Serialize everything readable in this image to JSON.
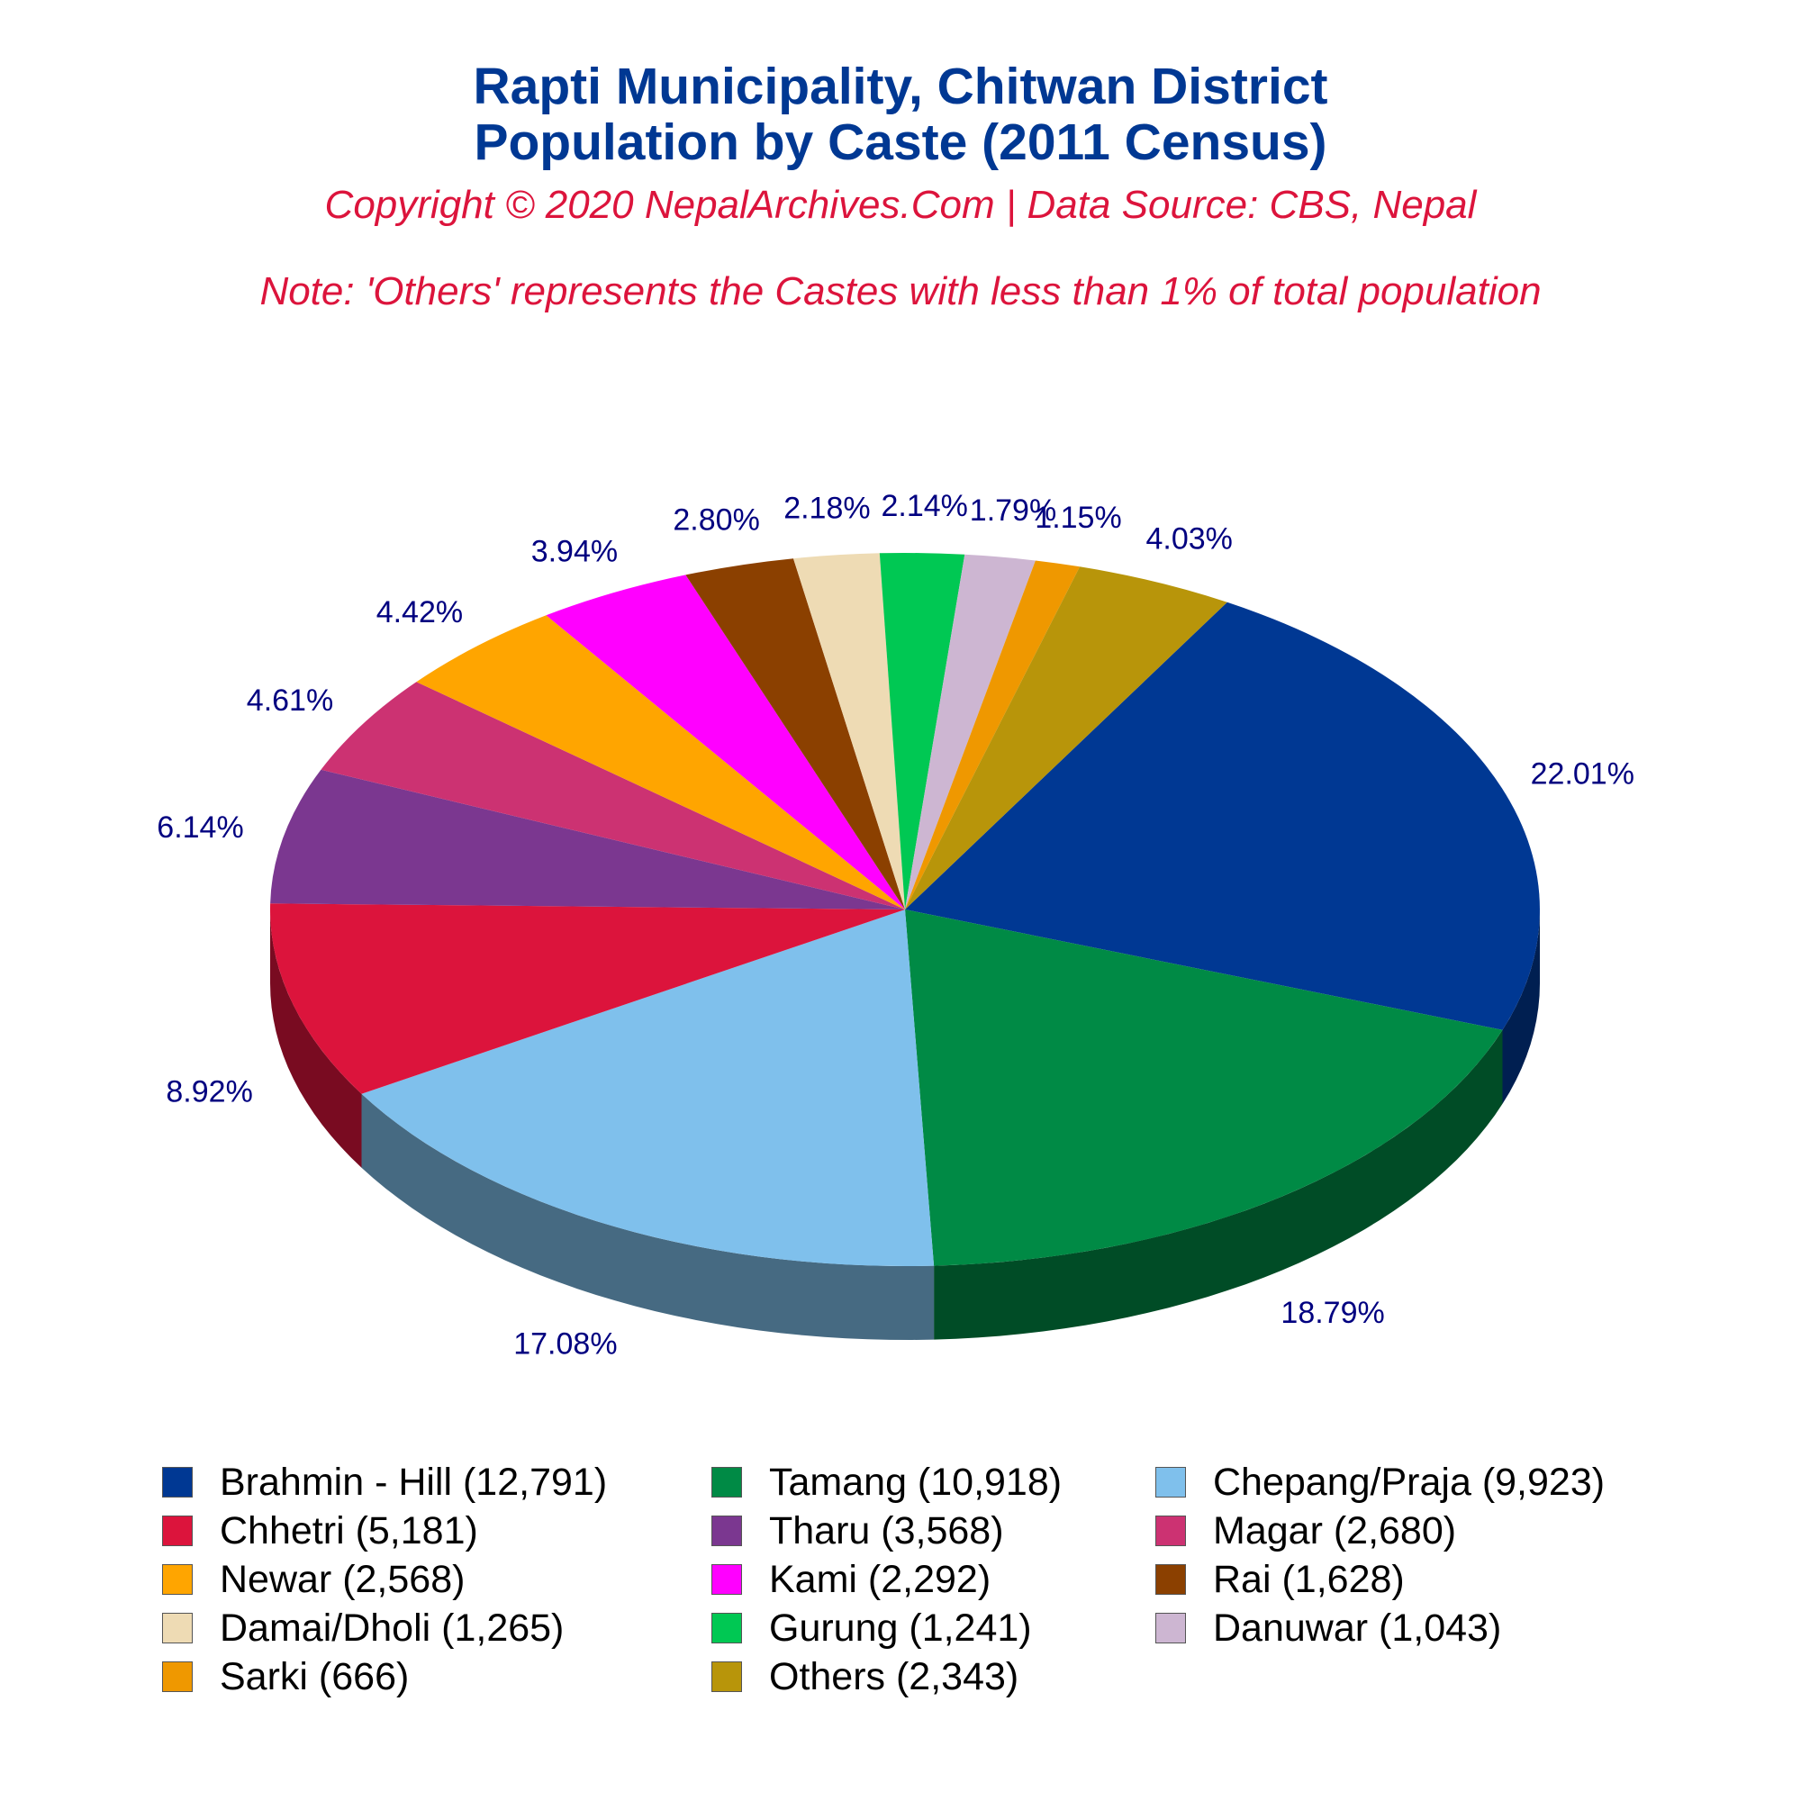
{
  "title_line1": "Rapti Municipality, Chitwan District",
  "title_line2": "Population by Caste (2011 Census)",
  "copyright": "Copyright © 2020 NepalArchives.Com | Data Source: CBS, Nepal",
  "note": "Note: 'Others' represents the Castes with less than 1% of total population",
  "chart_data": {
    "type": "pie",
    "style": "3d",
    "title": "Rapti Municipality, Chitwan District Population by Caste (2011 Census)",
    "legend_placement": "bottom",
    "slices": [
      {
        "name": "Brahmin - Hill",
        "value": 12791,
        "percent_label": "22.01%",
        "legend": "Brahmin - Hill (12,791)",
        "color": "#003893"
      },
      {
        "name": "Tamang",
        "value": 10918,
        "percent_label": "18.79%",
        "legend": "Tamang (10,918)",
        "color": "#008a45"
      },
      {
        "name": "Chepang/Praja",
        "value": 9923,
        "percent_label": "17.08%",
        "legend": "Chepang/Praja (9,923)",
        "color": "#7fc0ec"
      },
      {
        "name": "Chhetri",
        "value": 5181,
        "percent_label": "8.92%",
        "legend": "Chhetri (5,181)",
        "color": "#dc143c"
      },
      {
        "name": "Tharu",
        "value": 3568,
        "percent_label": "6.14%",
        "legend": "Tharu (3,568)",
        "color": "#7b3790"
      },
      {
        "name": "Magar",
        "value": 2680,
        "percent_label": "4.61%",
        "legend": "Magar (2,680)",
        "color": "#cc3272"
      },
      {
        "name": "Newar",
        "value": 2568,
        "percent_label": "4.42%",
        "legend": "Newar (2,568)",
        "color": "#ffa500"
      },
      {
        "name": "Kami",
        "value": 2292,
        "percent_label": "3.94%",
        "legend": "Kami (2,292)",
        "color": "#ff00ff"
      },
      {
        "name": "Rai",
        "value": 1628,
        "percent_label": "2.80%",
        "legend": "Rai (1,628)",
        "color": "#8b4000"
      },
      {
        "name": "Damai/Dholi",
        "value": 1265,
        "percent_label": "2.18%",
        "legend": "Damai/Dholi (1,265)",
        "color": "#eedbb4"
      },
      {
        "name": "Gurung",
        "value": 1241,
        "percent_label": "2.14%",
        "legend": "Gurung (1,241)",
        "color": "#00c853"
      },
      {
        "name": "Danuwar",
        "value": 1043,
        "percent_label": "1.79%",
        "legend": "Danuwar (1,043)",
        "color": "#cdb6d2"
      },
      {
        "name": "Sarki",
        "value": 666,
        "percent_label": "1.15%",
        "legend": "Sarki (666)",
        "color": "#ef9800"
      },
      {
        "name": "Others",
        "value": 2343,
        "percent_label": "4.03%",
        "legend": "Others (2,343)",
        "color": "#b8950a"
      }
    ]
  }
}
